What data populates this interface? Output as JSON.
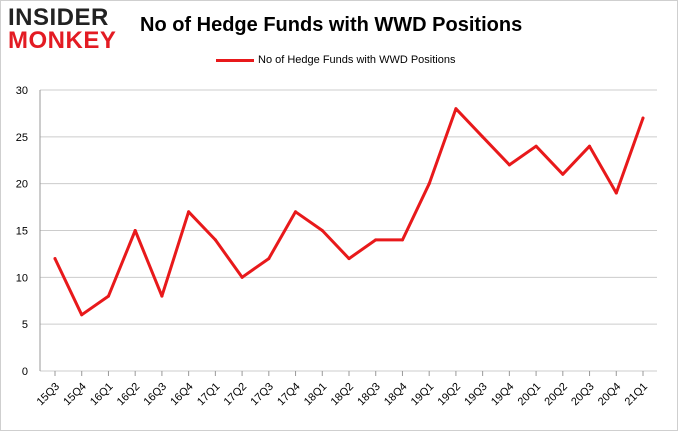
{
  "logo": {
    "line1": "INSIDER",
    "line2": "MONKEY"
  },
  "colors": {
    "series": "#e8191b",
    "grid": "#cccccc",
    "logo_red": "#e31b23"
  },
  "chart_data": {
    "type": "line",
    "title": "No of Hedge Funds with WWD Positions",
    "xlabel": "",
    "ylabel": "",
    "legend_position": "top-center",
    "grid": true,
    "ylim": [
      0,
      30
    ],
    "yticks": [
      0,
      5,
      10,
      15,
      20,
      25,
      30
    ],
    "categories": [
      "15Q3",
      "15Q4",
      "16Q1",
      "16Q2",
      "16Q3",
      "16Q4",
      "17Q1",
      "17Q2",
      "17Q3",
      "17Q4",
      "18Q1",
      "18Q2",
      "18Q3",
      "18Q4",
      "19Q1",
      "19Q2",
      "19Q3",
      "19Q4",
      "20Q1",
      "20Q2",
      "20Q3",
      "20Q4",
      "21Q1"
    ],
    "series": [
      {
        "name": "No of Hedge Funds with WWD Positions",
        "values": [
          12,
          6,
          8,
          15,
          8,
          17,
          14,
          10,
          12,
          17,
          15,
          12,
          14,
          14,
          20,
          28,
          25,
          22,
          24,
          21,
          24,
          19,
          27
        ]
      }
    ]
  }
}
